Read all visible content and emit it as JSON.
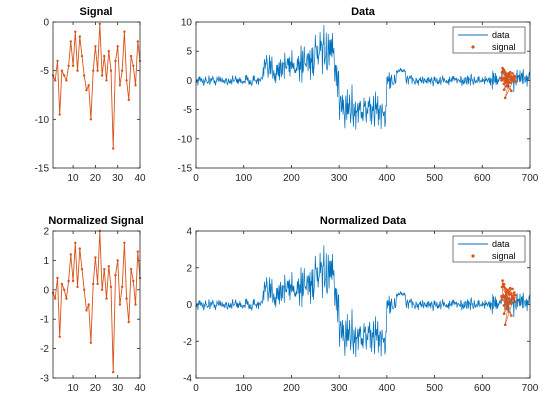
{
  "colors": {
    "data": "#0072BD",
    "signal": "#D95319",
    "axes": "#262626"
  },
  "chart_data": [
    {
      "type": "line",
      "title": "Signal",
      "xlim": [
        1,
        40
      ],
      "ylim": [
        -15,
        0
      ],
      "xticks": [
        10,
        20,
        30,
        40
      ],
      "yticks": [
        0,
        -5,
        -10,
        -15
      ],
      "series": [
        {
          "values": [
            -5.5,
            -6.0,
            -4.0,
            -9.5,
            -5.0,
            -5.5,
            -6.0,
            -4.5,
            -2.0,
            -4.5,
            -1.0,
            -5.0,
            -1.5,
            -3.5,
            -5.5,
            -7.0,
            -6.5,
            -10.0,
            -5.0,
            -2.5,
            -5.0,
            -0.2,
            -5.5,
            -3.5,
            -6.0,
            -3.0,
            -5.0,
            -13.0,
            -4.0,
            -2.5,
            -6.5,
            -5.0,
            -1.0,
            -6.0,
            -8.0,
            -3.5,
            -4.5,
            -6.5,
            -2.0,
            -4.0
          ]
        }
      ]
    },
    {
      "type": "line",
      "title": "Data",
      "xlim": [
        0,
        700
      ],
      "ylim": [
        -15,
        10
      ],
      "xticks": [
        0,
        100,
        200,
        300,
        400,
        500,
        600,
        700
      ],
      "yticks": [
        10,
        5,
        0,
        -5,
        -10,
        -15
      ],
      "legend": "top-right",
      "series": [
        {
          "name": "data",
          "type": "line"
        },
        {
          "name": "signal",
          "type": "scatter"
        }
      ]
    },
    {
      "type": "line",
      "title": "Normalized Signal",
      "xlim": [
        1,
        40
      ],
      "ylim": [
        -3,
        2
      ],
      "xticks": [
        10,
        20,
        30,
        40
      ],
      "yticks": [
        2,
        1,
        0,
        -1,
        -2,
        -3
      ],
      "series": [
        {
          "values": [
            -0.1,
            -0.3,
            0.4,
            -1.6,
            0.2,
            0.0,
            -0.3,
            0.3,
            1.2,
            0.3,
            1.6,
            0.1,
            1.4,
            0.7,
            0.0,
            -0.7,
            -0.5,
            -1.8,
            0.2,
            1.1,
            0.2,
            2.0,
            0.0,
            0.7,
            -0.3,
            0.8,
            0.1,
            -2.8,
            0.5,
            1.0,
            -0.5,
            0.1,
            1.6,
            -0.3,
            -1.1,
            0.7,
            0.3,
            -0.5,
            1.3,
            0.4
          ]
        }
      ]
    },
    {
      "type": "line",
      "title": "Normalized Data",
      "xlim": [
        0,
        700
      ],
      "ylim": [
        -4,
        4
      ],
      "xticks": [
        0,
        100,
        200,
        300,
        400,
        500,
        600,
        700
      ],
      "yticks": [
        4,
        2,
        0,
        -2,
        -4
      ],
      "legend": "top-right",
      "series": [
        {
          "name": "data",
          "type": "line"
        },
        {
          "name": "signal",
          "type": "scatter"
        }
      ]
    }
  ]
}
